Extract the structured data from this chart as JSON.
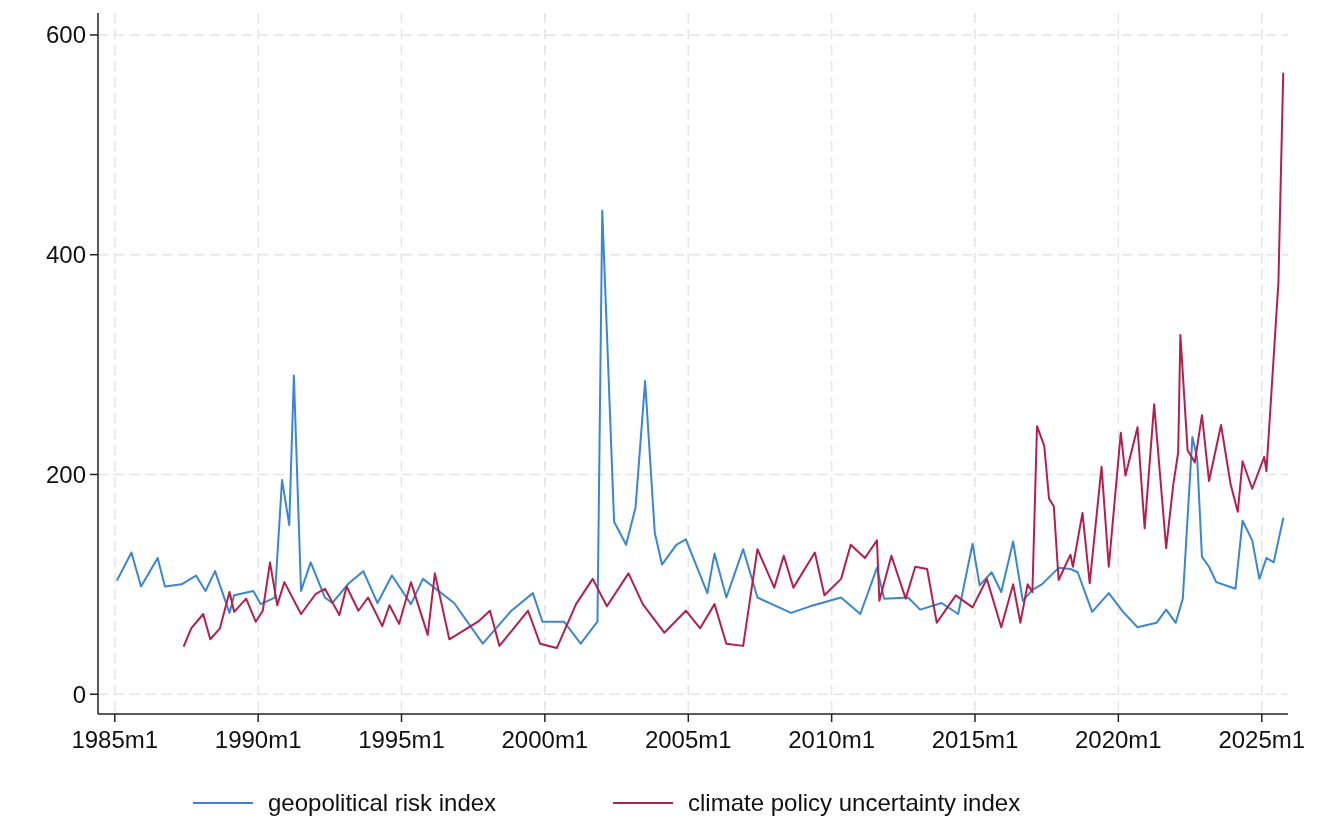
{
  "chart_data": {
    "type": "line",
    "xlim": [
      "1984-06",
      "2025-12"
    ],
    "ylim": [
      -18,
      620
    ],
    "xticks": [
      {
        "value": "1985-01",
        "label": "1985m1"
      },
      {
        "value": "1990-01",
        "label": "1990m1"
      },
      {
        "value": "1995-01",
        "label": "1995m1"
      },
      {
        "value": "2000-01",
        "label": "2000m1"
      },
      {
        "value": "2005-01",
        "label": "2005m1"
      },
      {
        "value": "2010-01",
        "label": "2010m1"
      },
      {
        "value": "2015-01",
        "label": "2015m1"
      },
      {
        "value": "2020-01",
        "label": "2020m1"
      },
      {
        "value": "2025-01",
        "label": "2025m1"
      }
    ],
    "yticks": [
      0,
      200,
      400,
      600
    ],
    "grid": true,
    "legend": "bottom",
    "line_style": "solid",
    "marker": "none",
    "series": [
      {
        "name": "geopolitical risk index",
        "color": "#3b86d4",
        "x": [
          "1985-02",
          "1985-08",
          "1985-12",
          "1986-07",
          "1986-10",
          "1987-05",
          "1987-11",
          "1988-03",
          "1988-07",
          "1989-01",
          "1989-03",
          "1989-11",
          "1990-02",
          "1990-08",
          "1990-11",
          "1991-02",
          "1991-04",
          "1991-07",
          "1991-11",
          "1992-05",
          "1992-08",
          "1993-03",
          "1993-09",
          "1994-03",
          "1994-09",
          "1995-05",
          "1995-10",
          "1996-11",
          "1997-11",
          "1998-11",
          "1999-08",
          "1999-12",
          "2000-09",
          "2001-04",
          "2001-11",
          "2002-01",
          "2002-06",
          "2002-11",
          "2003-03",
          "2003-07",
          "2003-11",
          "2004-02",
          "2004-08",
          "2004-12",
          "2005-09",
          "2005-12",
          "2006-05",
          "2006-12",
          "2007-06",
          "2008-08",
          "2009-04",
          "2010-05",
          "2011-01",
          "2011-08",
          "2011-11",
          "2012-09",
          "2013-02",
          "2013-11",
          "2014-06",
          "2014-12",
          "2015-03",
          "2015-08",
          "2015-12",
          "2016-05",
          "2016-09",
          "2017-01",
          "2017-05",
          "2017-12",
          "2018-05",
          "2018-08",
          "2019-02",
          "2019-09",
          "2020-03",
          "2020-09",
          "2021-05",
          "2021-09",
          "2022-01",
          "2022-04",
          "2022-08",
          "2022-10",
          "2022-12",
          "2023-03",
          "2023-06",
          "2024-02",
          "2024-05",
          "2024-09",
          "2024-12",
          "2025-03",
          "2025-06",
          "2025-10"
        ],
        "values": [
          104,
          129,
          98,
          124,
          98,
          100,
          108,
          94,
          112,
          74,
          90,
          94,
          82,
          88,
          195,
          154,
          290,
          94,
          120,
          88,
          83,
          101,
          112,
          83,
          108,
          82,
          105,
          83,
          46,
          76,
          92,
          66,
          66,
          46,
          66,
          440,
          157,
          136,
          170,
          285,
          147,
          118,
          136,
          141,
          92,
          128,
          88,
          132,
          88,
          74,
          80,
          88,
          73,
          115,
          87,
          88,
          77,
          83,
          73,
          137,
          99,
          111,
          93,
          139,
          85,
          95,
          100,
          115,
          114,
          111,
          75,
          92,
          75,
          61,
          65,
          77,
          65,
          87,
          234,
          215,
          125,
          116,
          102,
          96,
          158,
          140,
          105,
          124,
          120,
          160
        ]
      },
      {
        "name": "climate policy uncertainty index",
        "color": "#b3204e",
        "x": [
          "1987-06",
          "1987-09",
          "1988-02",
          "1988-05",
          "1988-09",
          "1989-01",
          "1989-03",
          "1989-08",
          "1989-12",
          "1990-03",
          "1990-06",
          "1990-09",
          "1990-12",
          "1991-07",
          "1992-01",
          "1992-05",
          "1992-11",
          "1993-02",
          "1993-07",
          "1993-11",
          "1994-05",
          "1994-08",
          "1994-12",
          "1995-05",
          "1995-12",
          "1996-03",
          "1996-09",
          "1997-09",
          "1998-02",
          "1998-06",
          "1999-06",
          "1999-11",
          "2000-06",
          "2001-02",
          "2001-09",
          "2002-03",
          "2002-12",
          "2003-06",
          "2004-03",
          "2004-12",
          "2005-06",
          "2005-12",
          "2006-05",
          "2006-12",
          "2007-06",
          "2008-01",
          "2008-05",
          "2008-09",
          "2009-06",
          "2009-10",
          "2010-05",
          "2010-09",
          "2011-03",
          "2011-08",
          "2011-09",
          "2012-02",
          "2012-08",
          "2012-12",
          "2013-05",
          "2013-09",
          "2014-05",
          "2014-12",
          "2015-06",
          "2015-12",
          "2016-05",
          "2016-08",
          "2016-11",
          "2017-01",
          "2017-03",
          "2017-06",
          "2017-08",
          "2017-10",
          "2017-12",
          "2018-05",
          "2018-06",
          "2018-10",
          "2019-01",
          "2019-06",
          "2019-09",
          "2020-02",
          "2020-04",
          "2020-09",
          "2020-12",
          "2021-04",
          "2021-09",
          "2021-12",
          "2022-02",
          "2022-03",
          "2022-06",
          "2022-09",
          "2022-12",
          "2023-03",
          "2023-08",
          "2023-12",
          "2024-03",
          "2024-05",
          "2024-09",
          "2025-02",
          "2025-03",
          "2025-08",
          "2025-10"
        ],
        "values": [
          44,
          60,
          73,
          50,
          60,
          93,
          75,
          87,
          66,
          76,
          120,
          81,
          102,
          73,
          91,
          96,
          72,
          98,
          76,
          88,
          62,
          81,
          64,
          102,
          54,
          110,
          50,
          66,
          76,
          44,
          76,
          46,
          42,
          82,
          105,
          80,
          110,
          82,
          56,
          76,
          60,
          82,
          46,
          44,
          132,
          97,
          126,
          97,
          129,
          90,
          105,
          136,
          124,
          140,
          85,
          126,
          87,
          116,
          114,
          65,
          90,
          79,
          105,
          61,
          100,
          65,
          100,
          93,
          244,
          226,
          178,
          171,
          104,
          127,
          116,
          165,
          101,
          207,
          116,
          238,
          199,
          243,
          151,
          264,
          133,
          191,
          220,
          327,
          222,
          211,
          254,
          194,
          245,
          191,
          166,
          212,
          187,
          216,
          203,
          375,
          565
        ]
      }
    ]
  }
}
